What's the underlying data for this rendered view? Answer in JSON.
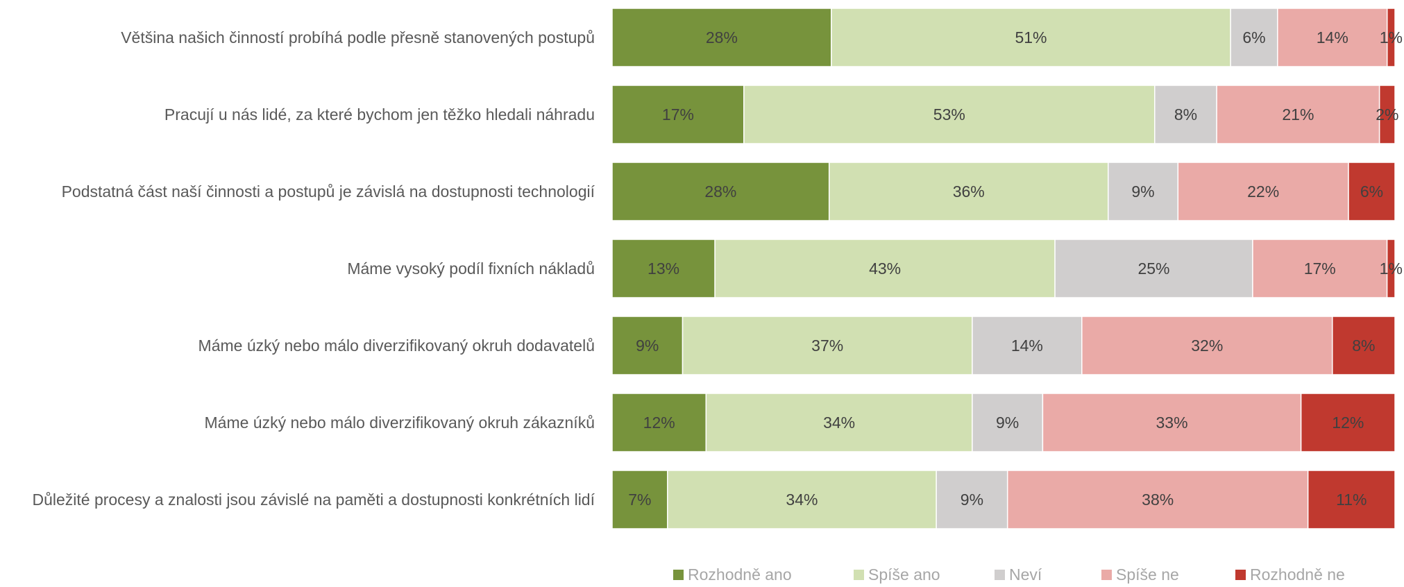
{
  "chart_data": {
    "type": "bar",
    "orientation": "horizontal",
    "stacked": "percent",
    "title": "",
    "xlabel": "",
    "ylabel": "",
    "xlim": [
      0,
      100
    ],
    "grid": false,
    "legend_position": "bottom",
    "categories": [
      "Většina našich činností probíhá podle přesně stanovených postupů",
      "Pracují u nás lidé, za které bychom jen těžko hledali náhradu",
      "Podstatná část naší činnosti a postupů je závislá na dostupnosti technologií",
      "Máme vysoký podíl fixních nákladů",
      "Máme úzký nebo málo diverzifikovaný okruh dodavatelů",
      "Máme úzký nebo málo diverzifikovaný okruh zákazníků",
      "Důležité procesy a znalosti jsou závislé na paměti a dostupnosti konkrétních lidí"
    ],
    "series": [
      {
        "name": "Rozhodně ano",
        "color": "#77933c",
        "values": [
          28,
          17,
          28,
          13,
          9,
          12,
          7
        ]
      },
      {
        "name": "Spíše ano",
        "color": "#d1e0b2",
        "values": [
          51,
          53,
          36,
          43,
          37,
          34,
          34
        ]
      },
      {
        "name": "Neví",
        "color": "#d0cece",
        "values": [
          6,
          8,
          9,
          25,
          14,
          9,
          9
        ]
      },
      {
        "name": "Spíše ne",
        "color": "#eaaaa7",
        "values": [
          14,
          21,
          22,
          17,
          32,
          33,
          38
        ]
      },
      {
        "name": "Rozhodně ne",
        "color": "#c0392f",
        "values": [
          1,
          2,
          6,
          1,
          8,
          12,
          11
        ]
      }
    ],
    "value_suffix": "%"
  }
}
